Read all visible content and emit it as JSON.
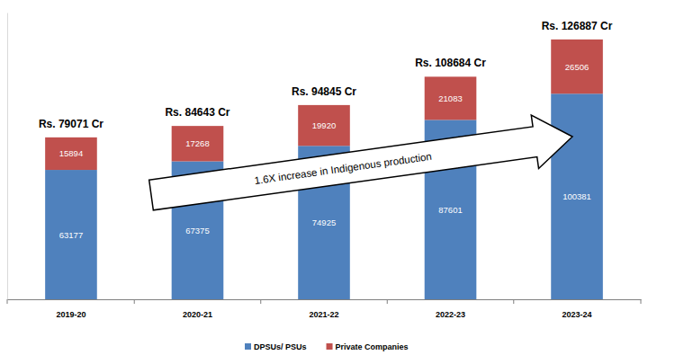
{
  "chart_data": {
    "type": "bar",
    "stacked": true,
    "data_labels": true,
    "tick_labels": "x",
    "grid": false,
    "legend": "bottom",
    "categories": [
      "2019-20",
      "2020-21",
      "2021-22",
      "2022-23",
      "2023-24"
    ],
    "series": [
      {
        "name": "DPSUs/ PSUs",
        "color": "#4f81bd",
        "values": [
          63177,
          67375,
          74925,
          87601,
          100381
        ]
      },
      {
        "name": "Private Companies",
        "color": "#c0504d",
        "values": [
          15894,
          17268,
          19920,
          21083,
          26506
        ]
      }
    ],
    "total_labels": [
      "Rs. 79071 Cr",
      "Rs. 84643 Cr",
      "Rs. 94845 Cr",
      "Rs. 108684 Cr",
      "Rs. 126887 Cr"
    ],
    "annotation": "1.6X increase in Indigenous production",
    "ylim": [
      0,
      140000
    ]
  }
}
